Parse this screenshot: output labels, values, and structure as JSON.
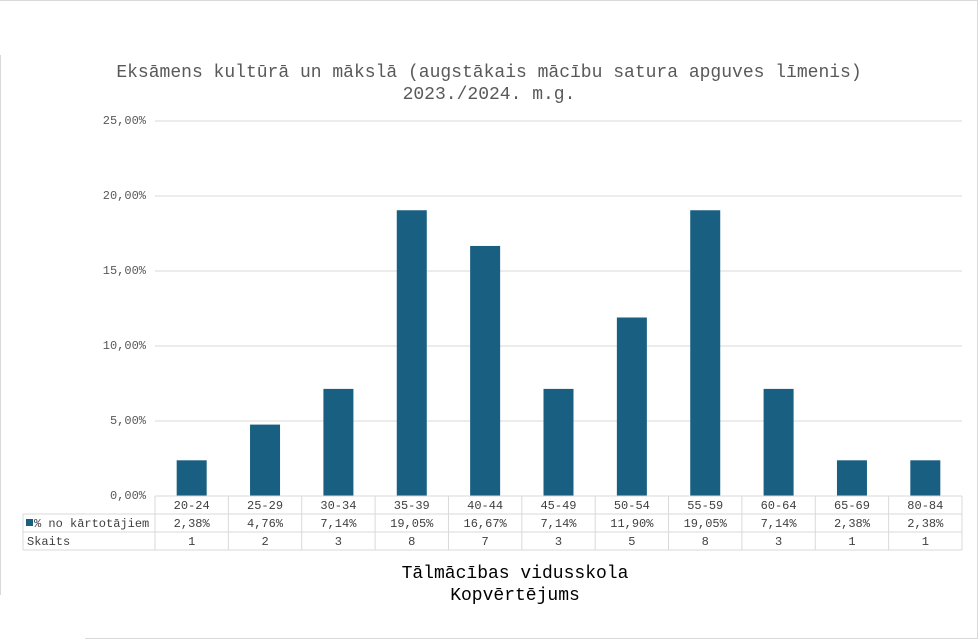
{
  "chart_data": {
    "type": "bar",
    "title": "Eksāmens kultūrā un mākslā (augstākais mācību satura apguves līmenis)",
    "subtitle": "2023./2024. m.g.",
    "categories": [
      "20-24",
      "25-29",
      "30-34",
      "35-39",
      "40-44",
      "45-49",
      "50-54",
      "55-59",
      "60-64",
      "65-69",
      "80-84"
    ],
    "series": [
      {
        "name": "% no kārtotājiem",
        "values": [
          2.38,
          4.76,
          7.14,
          19.05,
          16.67,
          7.14,
          11.9,
          19.05,
          7.14,
          2.38,
          2.38
        ]
      }
    ],
    "table_rows": [
      {
        "label": "% no kārtotājiem",
        "cells": [
          "2,38%",
          "4,76%",
          "7,14%",
          "19,05%",
          "16,67%",
          "7,14%",
          "11,90%",
          "19,05%",
          "7,14%",
          "2,38%",
          "2,38%"
        ]
      },
      {
        "label": "Skaits",
        "cells": [
          "1",
          "2",
          "3",
          "8",
          "7",
          "3",
          "5",
          "8",
          "3",
          "1",
          "1"
        ]
      }
    ],
    "y_ticks": [
      "0,00%",
      "5,00%",
      "10,00%",
      "15,00%",
      "20,00%",
      "25,00%"
    ],
    "ylim": [
      0,
      25
    ],
    "grid": true,
    "bar_color": "#185f82",
    "xlabel_lines": [
      "Tālmācības vidusskola",
      "Kopvērtējums"
    ]
  }
}
